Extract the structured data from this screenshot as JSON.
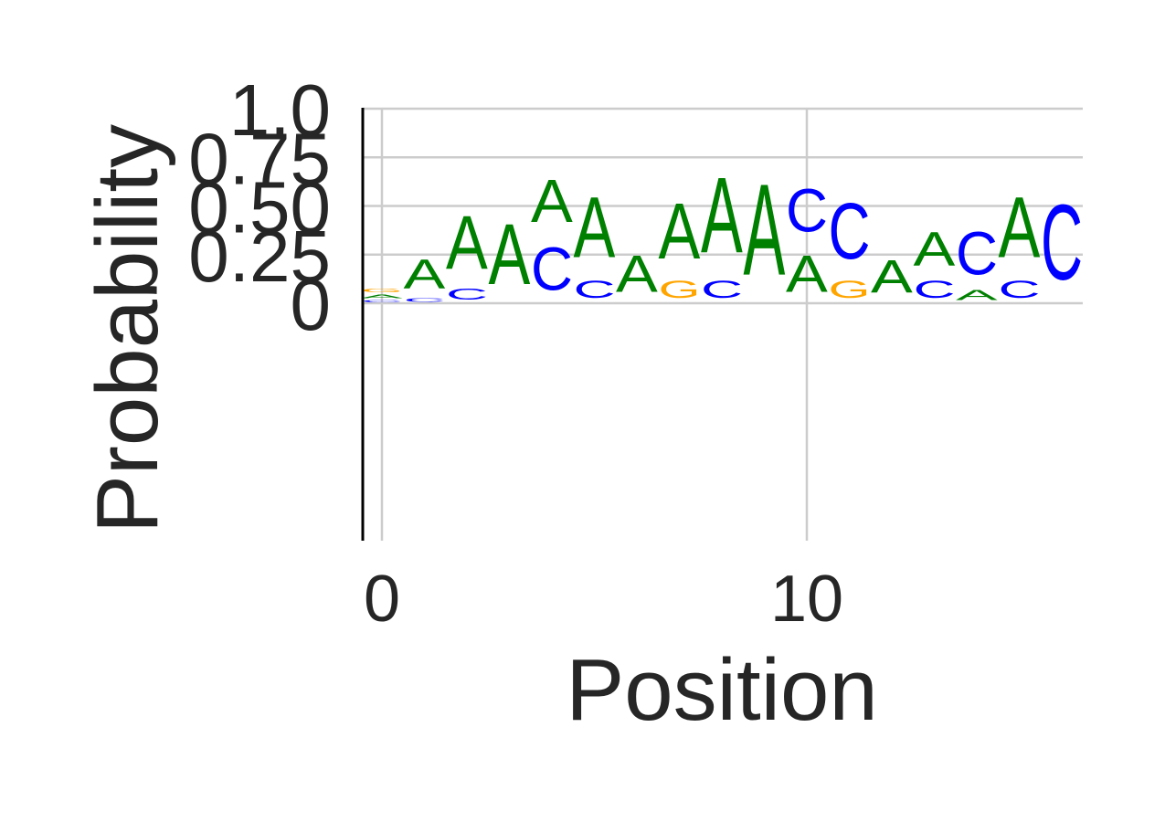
{
  "chart_data": {
    "type": "logo",
    "xlabel": "Position",
    "ylabel": "Probability",
    "ylim": [
      0,
      1.0
    ],
    "y_ticks": [
      {
        "value": 0,
        "label": "0"
      },
      {
        "value": 0.25,
        "label": "0.25"
      },
      {
        "value": 0.5,
        "label": "0.50"
      },
      {
        "value": 0.75,
        "label": "0.75"
      },
      {
        "value": 1.0,
        "label": "1.0"
      }
    ],
    "x_ticks": [
      {
        "value": 0,
        "label": "0"
      },
      {
        "value": 10,
        "label": "10"
      }
    ],
    "grid": true,
    "letter_colors": {
      "A": "#008000",
      "C": "#0000ff",
      "G": "#ffa500"
    },
    "positions": [
      {
        "position": 0,
        "letters": [
          {
            "letter": "C",
            "height": 0.02
          },
          {
            "letter": "A",
            "height": 0.03
          },
          {
            "letter": "G",
            "height": 0.03
          }
        ]
      },
      {
        "position": 1,
        "letters": [
          {
            "letter": "C",
            "height": 0.03
          },
          {
            "letter": "A",
            "height": 0.24
          }
        ]
      },
      {
        "position": 2,
        "letters": [
          {
            "letter": "C",
            "height": 0.09
          },
          {
            "letter": "A",
            "height": 0.44
          }
        ]
      },
      {
        "position": 3,
        "letters": [
          {
            "letter": "A",
            "height": 0.5
          }
        ]
      },
      {
        "position": 4,
        "letters": [
          {
            "letter": "C",
            "height": 0.35
          },
          {
            "letter": "A",
            "height": 0.35
          }
        ]
      },
      {
        "position": 5,
        "letters": [
          {
            "letter": "C",
            "height": 0.14
          },
          {
            "letter": "A",
            "height": 0.5
          }
        ]
      },
      {
        "position": 6,
        "letters": [
          {
            "letter": "A",
            "height": 0.3
          }
        ]
      },
      {
        "position": 7,
        "letters": [
          {
            "letter": "G",
            "height": 0.14
          },
          {
            "letter": "A",
            "height": 0.46
          }
        ]
      },
      {
        "position": 8,
        "letters": [
          {
            "letter": "C",
            "height": 0.14
          },
          {
            "letter": "A",
            "height": 0.62
          }
        ]
      },
      {
        "position": 9,
        "letters": [
          {
            "letter": "A",
            "height": 0.75
          }
        ]
      },
      {
        "position": 10,
        "letters": [
          {
            "letter": "A",
            "height": 0.3
          },
          {
            "letter": "C",
            "height": 0.35
          }
        ]
      },
      {
        "position": 11,
        "letters": [
          {
            "letter": "G",
            "height": 0.14
          },
          {
            "letter": "C",
            "height": 0.46
          }
        ]
      },
      {
        "position": 12,
        "letters": [
          {
            "letter": "A",
            "height": 0.27
          }
        ]
      },
      {
        "position": 13,
        "letters": [
          {
            "letter": "C",
            "height": 0.14
          },
          {
            "letter": "A",
            "height": 0.28
          }
        ]
      },
      {
        "position": 14,
        "letters": [
          {
            "letter": "A",
            "height": 0.08
          },
          {
            "letter": "C",
            "height": 0.35
          }
        ]
      },
      {
        "position": 15,
        "letters": [
          {
            "letter": "C",
            "height": 0.14
          },
          {
            "letter": "A",
            "height": 0.5
          }
        ]
      },
      {
        "position": 16,
        "letters": [
          {
            "letter": "C",
            "height": 0.62
          }
        ]
      }
    ]
  }
}
